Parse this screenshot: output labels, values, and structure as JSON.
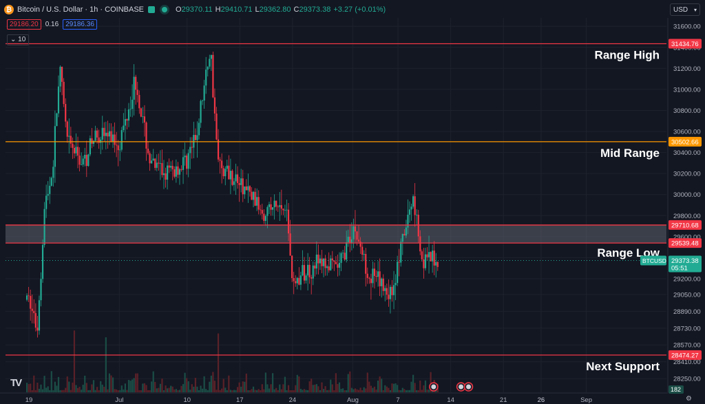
{
  "header": {
    "coin_icon": "bitcoin-icon",
    "title": "Bitcoin / U.S. Dollar · 1h · COINBASE",
    "ohlc": {
      "o_label": "O",
      "o": "29370.11",
      "h_label": "H",
      "h": "29410.71",
      "l_label": "L",
      "l": "29362.80",
      "c_label": "C",
      "c": "29373.38",
      "change": "+3.27 (+0.01%)"
    },
    "bid": "29186.20",
    "spread": "0.16",
    "ask": "29186.36",
    "indicator_count": "10",
    "currency": "USD",
    "logo": "TV"
  },
  "chart_data": {
    "type": "candlestick",
    "title": "Bitcoin / U.S. Dollar · 1h · COINBASE",
    "ylim": [
      28120,
      31680
    ],
    "y_ticks": [
      31600,
      31400,
      31200,
      31000,
      30800,
      30600,
      30400,
      30200,
      30000,
      29800,
      29600,
      29400,
      29200,
      29050,
      28890,
      28730,
      28570,
      28410,
      28250
    ],
    "x_ticks": [
      "19",
      "26",
      "Jul",
      "10",
      "17",
      "24",
      "Aug",
      "7",
      "14",
      "21",
      "26",
      "Sep"
    ],
    "price_path": [
      {
        "t": "Jun 19",
        "close": 29000
      },
      {
        "t": "Jun 20",
        "close": 28700
      },
      {
        "t": "Jun 21",
        "close": 29900
      },
      {
        "t": "Jun 22",
        "close": 30200
      },
      {
        "t": "Jun 23",
        "close": 31200
      },
      {
        "t": "Jun 24",
        "close": 30500
      },
      {
        "t": "Jun 26",
        "close": 30300
      },
      {
        "t": "Jun 28",
        "close": 30600
      },
      {
        "t": "Jul 1",
        "close": 30500
      },
      {
        "t": "Jul 3",
        "close": 31100
      },
      {
        "t": "Jul 5",
        "close": 30300
      },
      {
        "t": "Jul 7",
        "close": 30200
      },
      {
        "t": "Jul 9",
        "close": 30250
      },
      {
        "t": "Jul 11",
        "close": 30500
      },
      {
        "t": "Jul 13",
        "close": 31400
      },
      {
        "t": "Jul 14",
        "close": 30300
      },
      {
        "t": "Jul 17",
        "close": 30100
      },
      {
        "t": "Jul 20",
        "close": 29850
      },
      {
        "t": "Jul 23",
        "close": 29900
      },
      {
        "t": "Jul 24",
        "close": 29150
      },
      {
        "t": "Jul 27",
        "close": 29350
      },
      {
        "t": "Jul 30",
        "close": 29300
      },
      {
        "t": "Aug 1",
        "close": 29700
      },
      {
        "t": "Aug 3",
        "close": 29250
      },
      {
        "t": "Aug 6",
        "close": 29050
      },
      {
        "t": "Aug 8",
        "close": 29700
      },
      {
        "t": "Aug 9",
        "close": 30000
      },
      {
        "t": "Aug 10",
        "close": 29400
      },
      {
        "t": "Aug 11",
        "close": 29373.38
      }
    ],
    "levels": [
      {
        "label": "Range High",
        "price": 31434.76,
        "price_label": "31434.76",
        "color": "#f23645"
      },
      {
        "label": "Mid Range",
        "price": 30502.66,
        "price_label": "30502.66",
        "color": "#ff9800"
      },
      {
        "label": "",
        "price": 29710.68,
        "price_label": "29710.68",
        "color": "#f23645"
      },
      {
        "label": "Range Low",
        "price": 29539.48,
        "price_label": "29539.48",
        "color": "#f23645"
      },
      {
        "label": "Next Support",
        "price": 28474.27,
        "price_label": "28474.27",
        "color": "#f23645"
      }
    ],
    "range_low_zone": [
      29539.48,
      29710.68
    ],
    "current_price": {
      "symbol": "BTCUSD",
      "price": 29373.38,
      "price_label": "29373.38",
      "countdown": "05:51",
      "color": "#22ab94"
    },
    "volume_last_label": "182",
    "event_markers": 3,
    "colors": {
      "up": "#22ab94",
      "down": "#f23645",
      "volume_up": "#1b4d46",
      "volume_down": "#5a2128",
      "grid": "#1e222d",
      "text": "#d1d4dc"
    }
  }
}
